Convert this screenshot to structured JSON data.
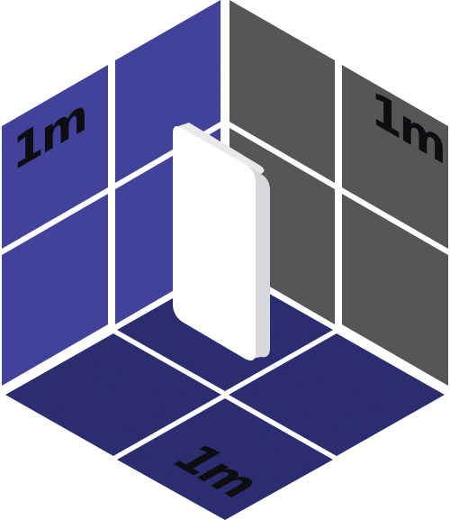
{
  "diagram": {
    "walls": {
      "left": {
        "label": "1m",
        "color": "#4545a0"
      },
      "right": {
        "label": "1m",
        "color": "#5b5a58"
      },
      "floor": {
        "label": "1m",
        "color": "#2e2f74"
      }
    },
    "grid": {
      "divisions_per_face": 2
    },
    "panel": {
      "color": "#ffffff",
      "edge_color": "#d8d8dc"
    }
  }
}
